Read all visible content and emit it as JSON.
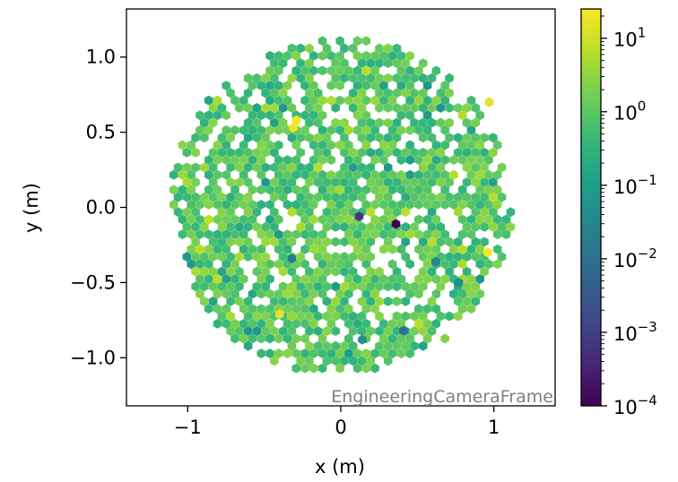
{
  "chart_data": {
    "type": "hexbin",
    "title": "",
    "xlabel": "x  (m)",
    "ylabel": "y  (m)",
    "xlim": [
      -1.4,
      1.4
    ],
    "ylim": [
      -1.32,
      1.32
    ],
    "x_ticks": [
      -1,
      0,
      1
    ],
    "x_tick_labels": [
      "−1",
      "0",
      "1"
    ],
    "y_ticks": [
      1.0,
      0.5,
      0.0,
      -0.5,
      -1.0
    ],
    "y_tick_labels": [
      "1.0",
      "0.5",
      "0.0",
      "−0.5",
      "−1.0"
    ],
    "frame_label": "EngineeringCameraFrame",
    "camera_radius": 1.12,
    "hex_size": 0.033,
    "colorbar": {
      "scale": "log",
      "range": [
        0.0001,
        25
      ],
      "ticks": [
        0.0001,
        0.001,
        0.01,
        0.1,
        1,
        10
      ],
      "tick_labels": [
        {
          "base": "10",
          "exp": "−4"
        },
        {
          "base": "10",
          "exp": "−3"
        },
        {
          "base": "10",
          "exp": "−2"
        },
        {
          "base": "10",
          "exp": "−1"
        },
        {
          "base": "10",
          "exp": "0"
        },
        {
          "base": "10",
          "exp": "1"
        }
      ],
      "colormap": "viridis"
    },
    "highlighted_pixels": [
      {
        "x": 0.36,
        "y": -0.11,
        "value": 0.0001
      },
      {
        "x": 0.12,
        "y": -0.06,
        "value": 0.0008
      },
      {
        "x": -0.29,
        "y": 0.58,
        "value": 20
      },
      {
        "x": -0.31,
        "y": 0.53,
        "value": 18
      },
      {
        "x": 0.96,
        "y": -0.3,
        "value": 22
      },
      {
        "x": 0.97,
        "y": 0.7,
        "value": 15
      },
      {
        "x": -0.4,
        "y": -0.71,
        "value": 16
      },
      {
        "x": 0.14,
        "y": -0.88,
        "value": 0.05
      },
      {
        "x": -0.32,
        "y": -0.34,
        "value": 0.02
      },
      {
        "x": 0.41,
        "y": -0.82,
        "value": 0.01
      },
      {
        "x": 0.62,
        "y": -0.36,
        "value": 0.03
      },
      {
        "x": 0.77,
        "y": -0.5,
        "value": 0.04
      }
    ]
  },
  "colors": {
    "viridis_stops": [
      "#440154",
      "#482878",
      "#3e4a89",
      "#31688e",
      "#26828e",
      "#1f9e89",
      "#35b779",
      "#6ece58",
      "#b5de2b",
      "#fde725"
    ],
    "frame_label": "#808080",
    "axis": "#000000"
  }
}
